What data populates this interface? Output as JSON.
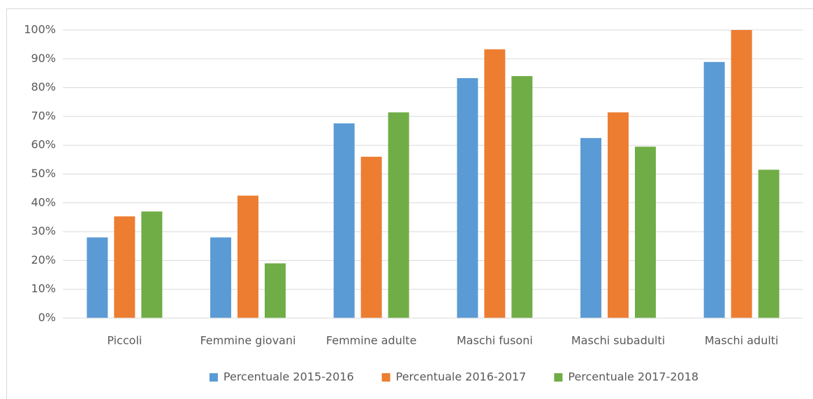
{
  "chart_data": {
    "type": "bar",
    "categories": [
      "Piccoli",
      "Femmine giovani",
      "Femmine adulte",
      "Maschi fusoni",
      "Maschi subadulti",
      "Maschi adulti"
    ],
    "series": [
      {
        "name": "Percentuale 2015-2016",
        "color": "#5b9bd5",
        "values": [
          28,
          28,
          67.6,
          83.3,
          62.5,
          88.9
        ]
      },
      {
        "name": "Percentuale 2016-2017",
        "color": "#ed7d31",
        "values": [
          35.3,
          42.5,
          56,
          93.3,
          71.4,
          100
        ]
      },
      {
        "name": "Percentuale 2017-2018",
        "color": "#70ad47",
        "values": [
          37,
          19,
          71.4,
          84,
          59.5,
          51.5
        ]
      }
    ],
    "ylim": [
      0,
      100
    ],
    "yticks": [
      {
        "value": 0,
        "label": "0%"
      },
      {
        "value": 10,
        "label": "10%"
      },
      {
        "value": 20,
        "label": "20%"
      },
      {
        "value": 30,
        "label": "30%"
      },
      {
        "value": 40,
        "label": "40%"
      },
      {
        "value": 50,
        "label": "50%"
      },
      {
        "value": 60,
        "label": "60%"
      },
      {
        "value": 70,
        "label": "70%"
      },
      {
        "value": 80,
        "label": "80%"
      },
      {
        "value": 90,
        "label": "90%"
      },
      {
        "value": 100,
        "label": "100%"
      }
    ],
    "grid": true,
    "legend": "bottom"
  }
}
